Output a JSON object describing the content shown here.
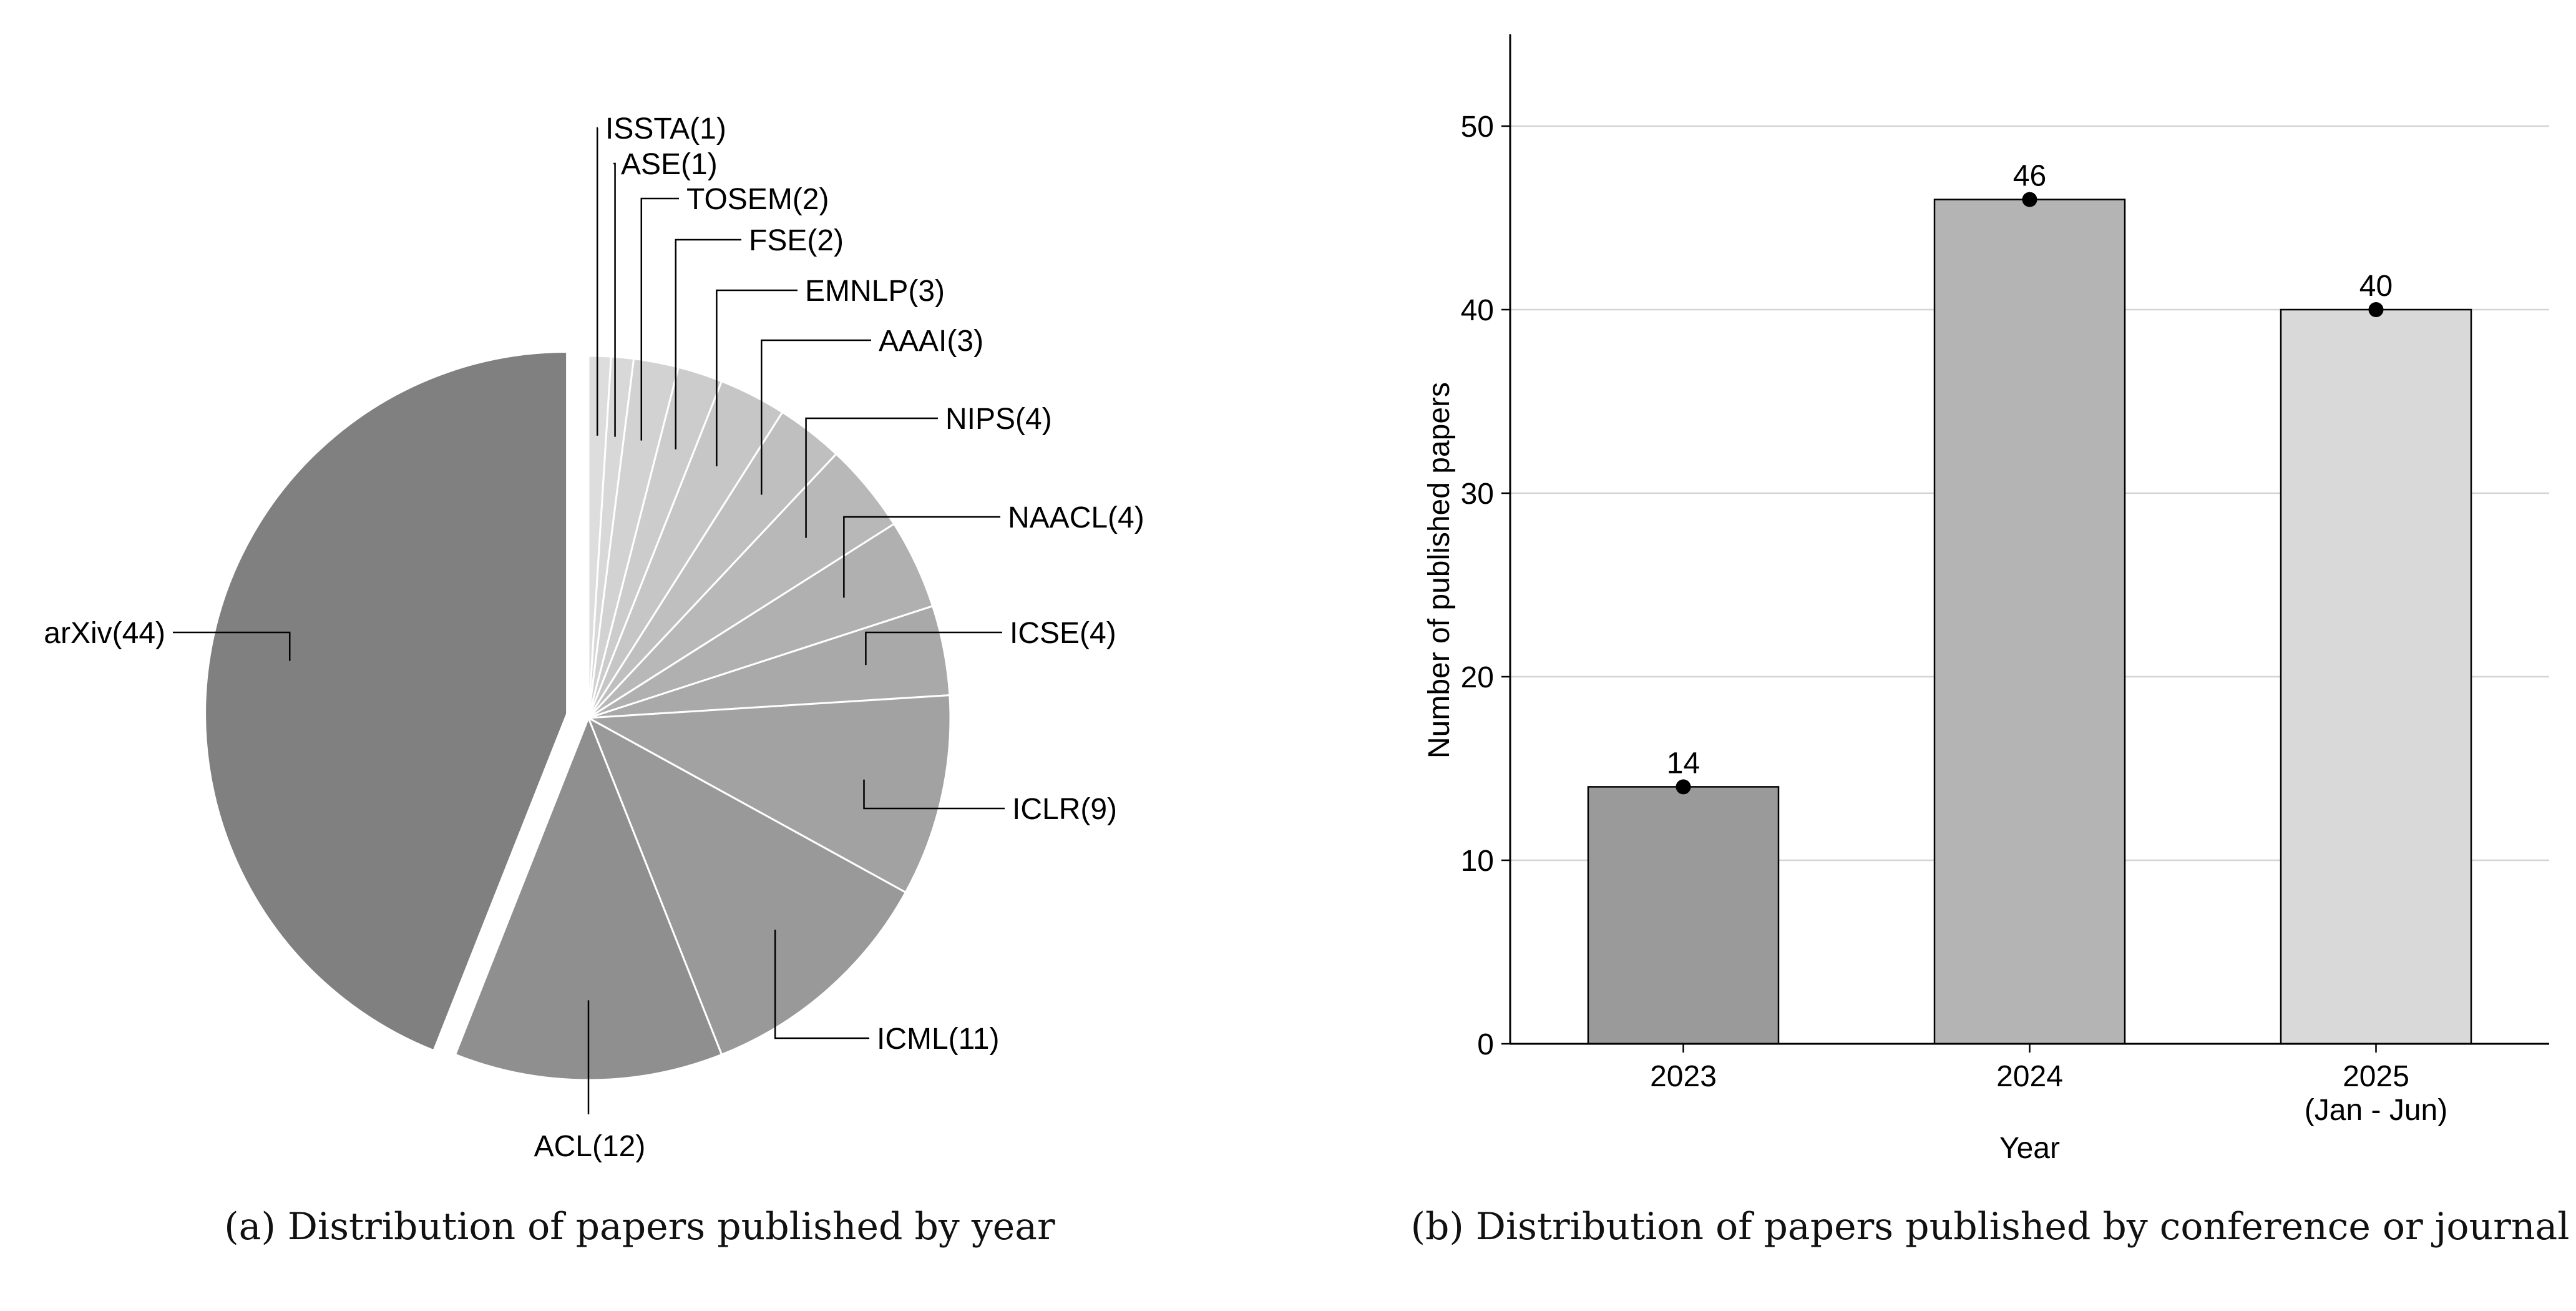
{
  "colors": {
    "bar_2023": "#9a9a9a",
    "bar_2024": "#b4b4b4",
    "bar_2025": "#d9d9d9",
    "gridline": "#d4d4d4",
    "axis": "#000000",
    "slice_edge": "#ffffff"
  },
  "captions": {
    "a": "(a)  Distribution of papers published by year",
    "b": "(b)  Distribution of papers published by conference or journal"
  },
  "chart_data": [
    {
      "type": "pie",
      "title": "",
      "slices": [
        {
          "label": "ISSTA(1)",
          "value": 1,
          "color": "#dddddd"
        },
        {
          "label": "ASE(1)",
          "value": 1,
          "color": "#d8d8d8"
        },
        {
          "label": "TOSEM(2)",
          "value": 2,
          "color": "#d2d2d2"
        },
        {
          "label": "FSE(2)",
          "value": 2,
          "color": "#cccccc"
        },
        {
          "label": "EMNLP(3)",
          "value": 3,
          "color": "#c6c6c6"
        },
        {
          "label": "AAAI(3)",
          "value": 3,
          "color": "#bfbfbf"
        },
        {
          "label": "NIPS(4)",
          "value": 4,
          "color": "#b8b8b8"
        },
        {
          "label": "NAACL(4)",
          "value": 4,
          "color": "#b0b0b0"
        },
        {
          "label": "ICSE(4)",
          "value": 4,
          "color": "#a9a9a9"
        },
        {
          "label": "ICLR(9)",
          "value": 9,
          "color": "#a2a2a2"
        },
        {
          "label": "ICML(11)",
          "value": 11,
          "color": "#999999"
        },
        {
          "label": "ACL(12)",
          "value": 12,
          "color": "#8f8f8f"
        },
        {
          "label": "arXiv(44)",
          "value": 44,
          "color": "#808080",
          "exploded": true
        }
      ],
      "start": "top",
      "direction": "clockwise"
    },
    {
      "type": "bar",
      "categories": [
        "2023",
        "2024",
        "2025"
      ],
      "category_sublabels": [
        "",
        "",
        "(Jan - Jun)"
      ],
      "values": [
        14,
        46,
        40
      ],
      "data_labels": [
        "14",
        "46",
        "40"
      ],
      "xlabel": "Year",
      "ylabel": "Number of published papers",
      "ylim": [
        0,
        55
      ],
      "yticks": [
        0,
        10,
        20,
        30,
        40,
        50
      ],
      "ytick_labels": [
        "0",
        "10",
        "20",
        "30",
        "40",
        "50"
      ],
      "grid": true,
      "markers": "dot at top of each bar"
    }
  ]
}
